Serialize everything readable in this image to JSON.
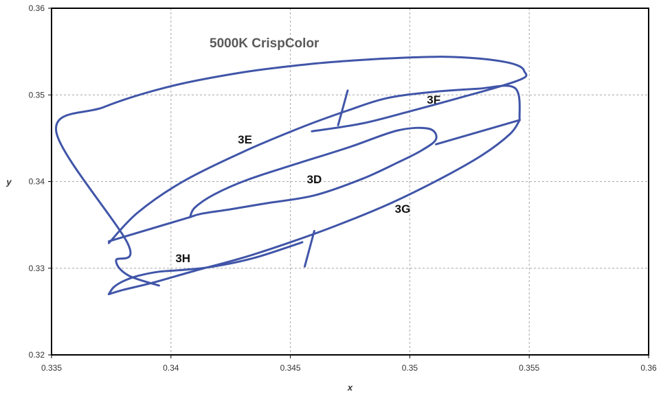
{
  "chart_data": {
    "type": "line",
    "title": "",
    "annotation": "5000K CrispColor",
    "xlabel": "x",
    "ylabel": "y",
    "xlim": [
      0.335,
      0.36
    ],
    "ylim": [
      0.32,
      0.36
    ],
    "x_ticks": [
      "0.335",
      "0.34",
      "0.345",
      "0.35",
      "0.355",
      "0.36"
    ],
    "y_ticks": [
      "0.32",
      "0.33",
      "0.34",
      "0.35",
      "0.36"
    ],
    "grid": true,
    "line_color": "#4055a8",
    "series": [
      {
        "x": [
          0.3459,
          0.348,
          0.35,
          0.352,
          0.3538,
          0.3548,
          0.3548,
          0.3546,
          0.354,
          0.3529,
          0.3515,
          0.3498,
          0.3478,
          0.3456,
          0.343,
          0.34,
          0.3372,
          0.3352,
          0.3382,
          0.3377,
          0.3382,
          0.3395
        ],
        "y": [
          0.3458,
          0.3467,
          0.3481,
          0.3496,
          0.351,
          0.352,
          0.3527,
          0.3533,
          0.3538,
          0.3542,
          0.3544,
          0.3543,
          0.354,
          0.3535,
          0.3526,
          0.351,
          0.3486,
          0.3457,
          0.3328,
          0.3309,
          0.3292,
          0.328
        ]
      },
      {
        "x": [
          0.3374,
          0.3386,
          0.3405,
          0.343,
          0.3455,
          0.3474,
          0.349,
          0.3508,
          0.3528,
          0.3544,
          0.3546
        ],
        "y": [
          0.3329,
          0.3364,
          0.34,
          0.3434,
          0.3463,
          0.3482,
          0.3496,
          0.3503,
          0.3507,
          0.3508,
          0.3471
        ]
      },
      {
        "x": [
          0.3546,
          0.3542,
          0.353,
          0.3512,
          0.3492,
          0.347,
          0.345,
          0.343,
          0.341,
          0.3392,
          0.338,
          0.3374
        ],
        "y": [
          0.3471,
          0.3455,
          0.343,
          0.3402,
          0.3375,
          0.335,
          0.333,
          0.3312,
          0.3297,
          0.3283,
          0.3275,
          0.327
        ]
      },
      {
        "x": [
          0.3374,
          0.3376,
          0.338,
          0.3386,
          0.3395,
          0.3405,
          0.3418,
          0.3435,
          0.3455
        ],
        "y": [
          0.327,
          0.3278,
          0.3285,
          0.3291,
          0.3296,
          0.3298,
          0.3302,
          0.3312,
          0.333
        ]
      },
      {
        "x": [
          0.3374,
          0.3408
        ],
        "y": [
          0.3331,
          0.3359
        ]
      },
      {
        "x": [
          0.3474,
          0.347
        ],
        "y": [
          0.3505,
          0.3465
        ]
      },
      {
        "x": [
          0.3546,
          0.3511
        ],
        "y": [
          0.3471,
          0.3443
        ]
      },
      {
        "x": [
          0.3456,
          0.346
        ],
        "y": [
          0.3302,
          0.3343
        ]
      },
      {
        "x": [
          0.3408,
          0.341,
          0.3418,
          0.3432,
          0.3452,
          0.3475,
          0.3495,
          0.3508,
          0.3511,
          0.3505,
          0.3495,
          0.348,
          0.346,
          0.344,
          0.3425,
          0.3413,
          0.3408
        ],
        "y": [
          0.3359,
          0.337,
          0.3385,
          0.3402,
          0.342,
          0.344,
          0.3459,
          0.3461,
          0.3449,
          0.3436,
          0.3422,
          0.3403,
          0.3384,
          0.3375,
          0.3368,
          0.3363,
          0.3359
        ]
      }
    ],
    "bins": [
      {
        "label": "3D",
        "x": 0.346,
        "y": 0.3398
      },
      {
        "label": "3E",
        "x": 0.3431,
        "y": 0.3444
      },
      {
        "label": "3F",
        "x": 0.351,
        "y": 0.349
      },
      {
        "label": "3G",
        "x": 0.3497,
        "y": 0.3364
      },
      {
        "label": "3H",
        "x": 0.3405,
        "y": 0.3307
      }
    ]
  }
}
